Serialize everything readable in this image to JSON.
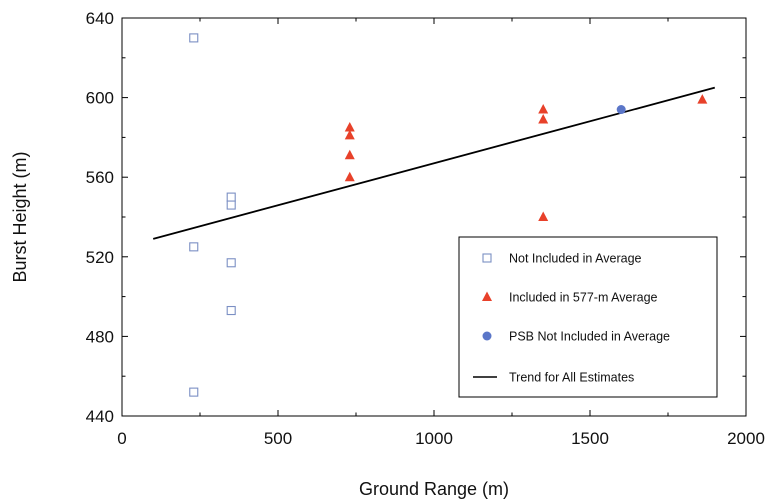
{
  "chart_data": {
    "type": "scatter",
    "title": "",
    "xlabel": "Ground Range (m)",
    "ylabel": "Burst Height (m)",
    "xlim": [
      0,
      2000
    ],
    "ylim": [
      440,
      640
    ],
    "xticks": [
      0,
      500,
      1000,
      1500,
      2000
    ],
    "yticks": [
      440,
      480,
      520,
      560,
      600,
      640
    ],
    "xtick_labels": [
      "0",
      "500",
      "1000",
      "1500",
      "2000"
    ],
    "ytick_labels": [
      "440",
      "480",
      "520",
      "560",
      "600",
      "640"
    ],
    "grid": false,
    "legend_position": "lower-right",
    "series": [
      {
        "name": "Not Included in Average",
        "marker": "open-square",
        "color": "#7b8fc4",
        "points": [
          [
            230,
            630
          ],
          [
            230,
            525
          ],
          [
            230,
            452
          ],
          [
            350,
            550
          ],
          [
            350,
            546
          ],
          [
            350,
            517
          ],
          [
            350,
            493
          ]
        ]
      },
      {
        "name": "Included in 577-m Average",
        "marker": "filled-triangle",
        "color": "#e8412a",
        "points": [
          [
            730,
            585
          ],
          [
            730,
            581
          ],
          [
            730,
            571
          ],
          [
            730,
            560
          ],
          [
            1350,
            594
          ],
          [
            1350,
            589
          ],
          [
            1350,
            540
          ],
          [
            1860,
            599
          ]
        ]
      },
      {
        "name": "PSB Not Included in Average",
        "marker": "filled-circle",
        "color": "#5b76c8",
        "points": [
          [
            1600,
            594
          ]
        ]
      },
      {
        "name": "Trend for All Estimates",
        "marker": "line",
        "color": "#000000",
        "points": [
          [
            100,
            529
          ],
          [
            1900,
            605
          ]
        ]
      }
    ]
  }
}
